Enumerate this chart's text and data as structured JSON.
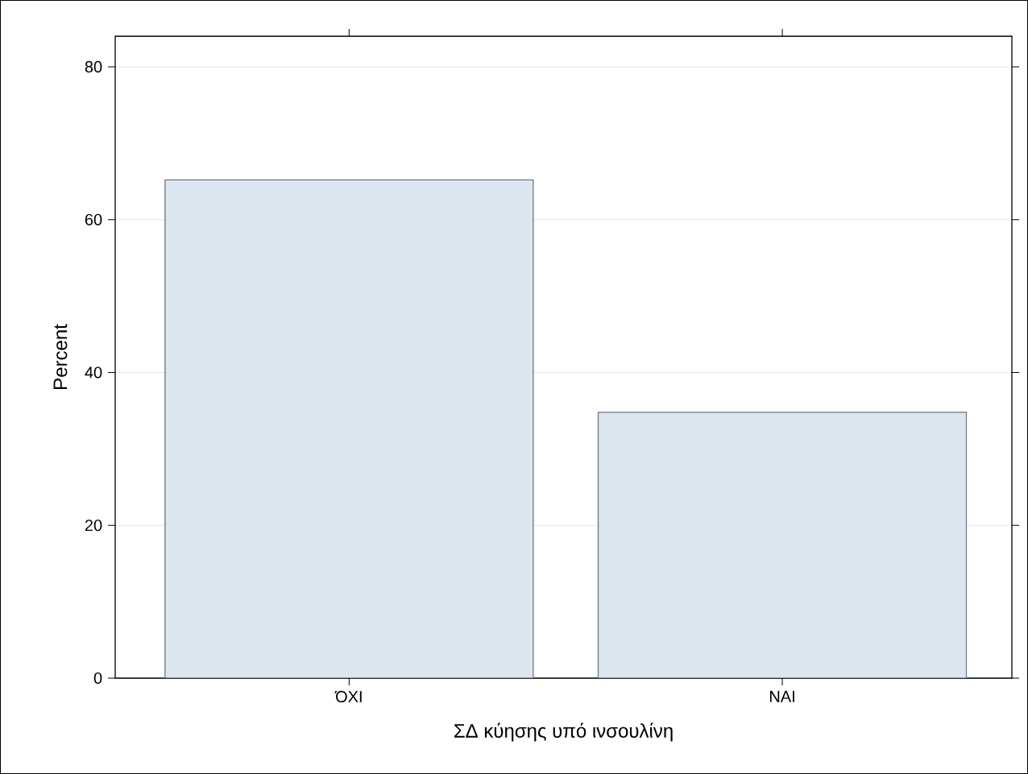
{
  "chart_data": {
    "type": "bar",
    "xlabel": "ΣΔ κύησης υπό ινσουλίνη",
    "ylabel": "Percent",
    "categories": [
      "ΌΧΙ",
      "ΝΑΙ"
    ],
    "values": [
      65.2,
      34.8
    ],
    "color": "#dce6f1",
    "ylim": [
      0,
      84
    ],
    "yticks": [
      0,
      20,
      40,
      60,
      80
    ],
    "grid": "y"
  }
}
